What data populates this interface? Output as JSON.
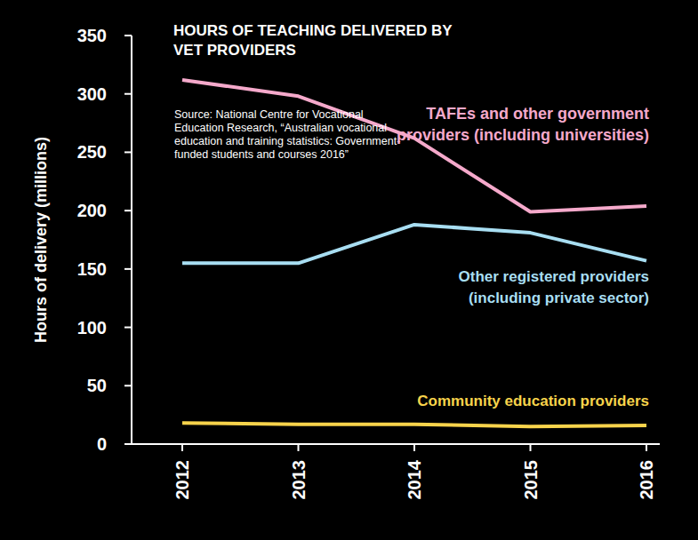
{
  "chart_data": {
    "type": "line",
    "title": "HOURS OF TEACHING DELIVERED BY VET PROVIDERS",
    "annotation": "Source: National Centre for Vocational Education Research, “Australian vocational education and training statistics: Government-funded students and courses 2016”",
    "y_label": "Hours of delivery (millions)",
    "categories": [
      "2012",
      "2013",
      "2014",
      "2015",
      "2016"
    ],
    "series": [
      {
        "name": "TAFEs and other government providers (including universities)",
        "color": "#f5a9cb",
        "values": [
          312,
          298,
          262,
          199,
          204
        ]
      },
      {
        "name": "Other registered providers (including private sector)",
        "color": "#a8def2",
        "values": [
          155,
          155,
          188,
          181,
          157
        ]
      },
      {
        "name": "Community education providers",
        "color": "#f7d34b",
        "values": [
          18,
          17,
          17,
          15,
          16
        ]
      }
    ],
    "ylim": [
      0,
      350
    ],
    "yticks": [
      0,
      50,
      100,
      150,
      200,
      250,
      300,
      350
    ],
    "grid": false
  }
}
